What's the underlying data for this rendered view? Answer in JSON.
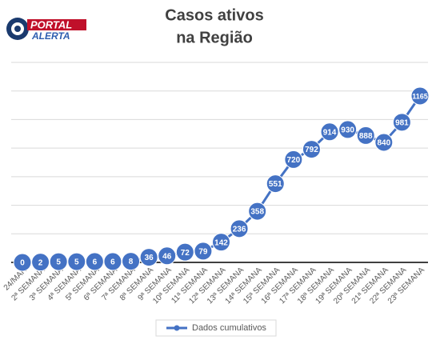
{
  "logo": {
    "line1": "PORTAL",
    "line2": "ALERTA"
  },
  "chart_data": {
    "type": "line",
    "title": [
      "Casos ativos",
      "na Região"
    ],
    "categories": [
      "24/MAR",
      "2ª SEMANA",
      "3ª SEMANA",
      "4ª SEMANA",
      "5ª SEMANA",
      "6ª SEMANA",
      "7ª SEMANA",
      "8ª SEMANA",
      "9ª SEMANA",
      "10ª SEMANA",
      "11ª SEMANA",
      "12ª SEMANA",
      "13ª SEMANA",
      "14ª SEMANA",
      "15ª SEMANA",
      "16ª SEMANA",
      "17ª SEMANA",
      "18ª SEMANA",
      "19ª SEMANA",
      "20ª SEMANA",
      "21ª SEMANA",
      "22ª SEMANA",
      "23ª SEMANA"
    ],
    "series": [
      {
        "name": "Dados cumulativos",
        "color": "#4472c4",
        "values": [
          0,
          2,
          5,
          5,
          6,
          6,
          8,
          36,
          46,
          72,
          79,
          142,
          236,
          358,
          551,
          720,
          792,
          914,
          930,
          888,
          840,
          981,
          1165
        ]
      }
    ],
    "ylim": [
      0,
      1400
    ],
    "yticks": [
      0,
      200,
      400,
      600,
      800,
      1000,
      1200,
      1400
    ],
    "grid": true,
    "legend": "bottom"
  }
}
